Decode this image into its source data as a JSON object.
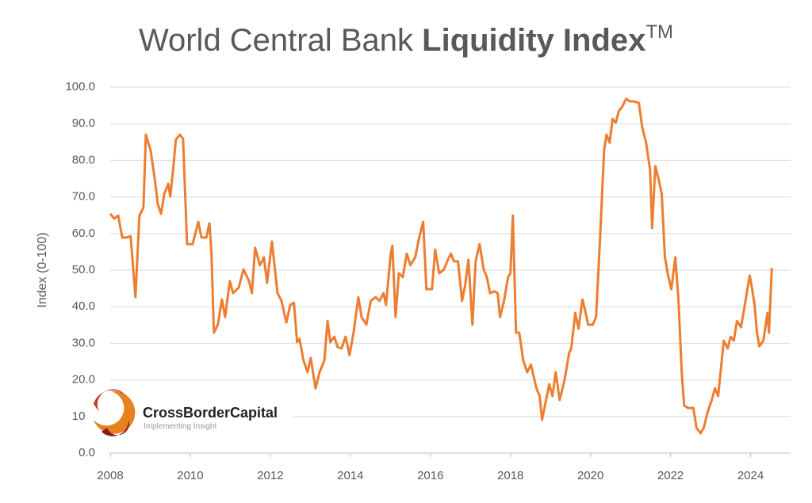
{
  "chart_data": {
    "type": "line",
    "title": {
      "main": "World Central Bank ",
      "bold": "Liquidity Index",
      "mark": "TM"
    },
    "y_label": "Index (0-100)",
    "logo": {
      "name": "CrossBorderCapital",
      "tagline": "Implementing Insight"
    },
    "color": "#ed7d31",
    "grid": true,
    "xlim": [
      2008,
      2025
    ],
    "xticks": [
      2008,
      2010,
      2012,
      2014,
      2016,
      2018,
      2020,
      2022,
      2024
    ],
    "ylim": [
      0,
      100
    ],
    "yticks": [
      {
        "value": 0,
        "label": "0.0"
      },
      {
        "value": 10,
        "label": "10.0"
      },
      {
        "value": 20,
        "label": "20.0"
      },
      {
        "value": 30,
        "label": "30.0"
      },
      {
        "value": 40,
        "label": "40.0"
      },
      {
        "value": 50,
        "label": "50.0"
      },
      {
        "value": 60,
        "label": "60.0"
      },
      {
        "value": 70,
        "label": "70.0"
      },
      {
        "value": 80,
        "label": "80.0"
      },
      {
        "value": 90,
        "label": "90.0"
      },
      {
        "value": 100,
        "label": "100.0"
      }
    ],
    "x": [
      2008.0,
      2008.1,
      2008.2,
      2008.3,
      2008.42,
      2008.51,
      2008.63,
      2008.73,
      2008.83,
      2008.89,
      2009.01,
      2009.11,
      2009.19,
      2009.27,
      2009.35,
      2009.45,
      2009.5,
      2009.58,
      2009.64,
      2009.74,
      2009.82,
      2009.92,
      2010.06,
      2010.2,
      2010.28,
      2010.4,
      2010.48,
      2010.53,
      2010.59,
      2010.69,
      2010.79,
      2010.87,
      2010.99,
      2011.07,
      2011.21,
      2011.33,
      2011.47,
      2011.54,
      2011.62,
      2011.74,
      2011.84,
      2011.92,
      2012.04,
      2012.18,
      2012.28,
      2012.4,
      2012.5,
      2012.59,
      2012.67,
      2012.73,
      2012.83,
      2012.93,
      2013.01,
      2013.13,
      2013.23,
      2013.35,
      2013.43,
      2013.5,
      2013.6,
      2013.68,
      2013.78,
      2013.88,
      2013.98,
      2014.08,
      2014.2,
      2014.28,
      2014.4,
      2014.51,
      2014.63,
      2014.73,
      2014.83,
      2014.89,
      2015.01,
      2015.05,
      2015.13,
      2015.21,
      2015.31,
      2015.41,
      2015.5,
      2015.62,
      2015.72,
      2015.82,
      2015.9,
      2016.04,
      2016.12,
      2016.22,
      2016.34,
      2016.42,
      2016.51,
      2016.59,
      2016.69,
      2016.79,
      2016.87,
      2016.95,
      2017.05,
      2017.13,
      2017.23,
      2017.33,
      2017.41,
      2017.49,
      2017.6,
      2017.68,
      2017.74,
      2017.84,
      2017.94,
      2018.0,
      2018.06,
      2018.14,
      2018.22,
      2018.32,
      2018.42,
      2018.51,
      2018.65,
      2018.73,
      2018.79,
      2018.87,
      2018.97,
      2019.05,
      2019.13,
      2019.23,
      2019.35,
      2019.47,
      2019.52,
      2019.62,
      2019.7,
      2019.8,
      2019.88,
      2019.94,
      2020.06,
      2020.14,
      2020.24,
      2020.34,
      2020.4,
      2020.48,
      2020.55,
      2020.63,
      2020.71,
      2020.79,
      2020.89,
      2020.99,
      2021.09,
      2021.21,
      2021.29,
      2021.39,
      2021.49,
      2021.54,
      2021.62,
      2021.72,
      2021.78,
      2021.86,
      2021.94,
      2022.02,
      2022.12,
      2022.2,
      2022.28,
      2022.34,
      2022.44,
      2022.57,
      2022.65,
      2022.75,
      2022.83,
      2022.93,
      2023.03,
      2023.11,
      2023.19,
      2023.29,
      2023.33,
      2023.43,
      2023.5,
      2023.58,
      2023.66,
      2023.76,
      2023.84,
      2023.92,
      2023.98,
      2024.04,
      2024.1,
      2024.16,
      2024.22,
      2024.32,
      2024.42,
      2024.46,
      2024.53
    ],
    "values": [
      65.4,
      64.1,
      64.9,
      58.9,
      58.9,
      59.3,
      42.6,
      64.9,
      67.1,
      87.0,
      82.7,
      75.1,
      68.0,
      65.4,
      70.8,
      73.6,
      70.1,
      78.4,
      85.7,
      87.0,
      85.9,
      57.1,
      57.1,
      63.2,
      58.9,
      58.9,
      62.8,
      54.5,
      32.9,
      35.1,
      42.0,
      37.2,
      47.0,
      43.7,
      45.2,
      50.2,
      47.0,
      43.7,
      56.1,
      51.3,
      53.5,
      46.5,
      57.8,
      43.7,
      41.6,
      35.7,
      40.5,
      41.1,
      30.3,
      31.2,
      25.3,
      22.1,
      26.0,
      17.7,
      22.1,
      25.3,
      36.1,
      30.3,
      31.8,
      29.0,
      28.6,
      31.8,
      26.8,
      32.9,
      42.6,
      37.2,
      35.1,
      41.6,
      42.6,
      41.6,
      43.7,
      40.5,
      54.5,
      56.7,
      37.2,
      49.1,
      48.1,
      54.5,
      51.3,
      53.5,
      58.9,
      63.2,
      44.8,
      44.8,
      55.6,
      49.1,
      50.2,
      52.4,
      54.5,
      52.4,
      52.4,
      41.6,
      45.9,
      52.8,
      35.1,
      52.4,
      57.1,
      50.2,
      48.1,
      43.7,
      44.2,
      43.7,
      37.2,
      41.6,
      48.1,
      49.1,
      64.9,
      32.9,
      32.9,
      25.3,
      22.1,
      24.2,
      17.7,
      15.6,
      9.1,
      13.4,
      18.8,
      15.6,
      22.1,
      14.5,
      19.9,
      27.5,
      28.6,
      38.3,
      34.0,
      42.0,
      38.3,
      35.1,
      35.1,
      37.2,
      58.9,
      82.7,
      87.0,
      84.8,
      91.3,
      90.3,
      93.5,
      94.6,
      96.8,
      96.1,
      96.1,
      95.7,
      89.2,
      84.8,
      77.3,
      61.5,
      78.4,
      74.0,
      70.8,
      53.5,
      48.5,
      44.8,
      53.5,
      41.6,
      22.1,
      13.0,
      12.3,
      12.3,
      6.9,
      5.4,
      6.9,
      11.3,
      14.5,
      17.7,
      15.6,
      26.4,
      30.7,
      28.6,
      31.8,
      30.7,
      36.1,
      34.4,
      39.4,
      44.8,
      48.5,
      44.8,
      40.5,
      32.9,
      29.2,
      30.7,
      38.3,
      32.9,
      50.6
    ]
  }
}
